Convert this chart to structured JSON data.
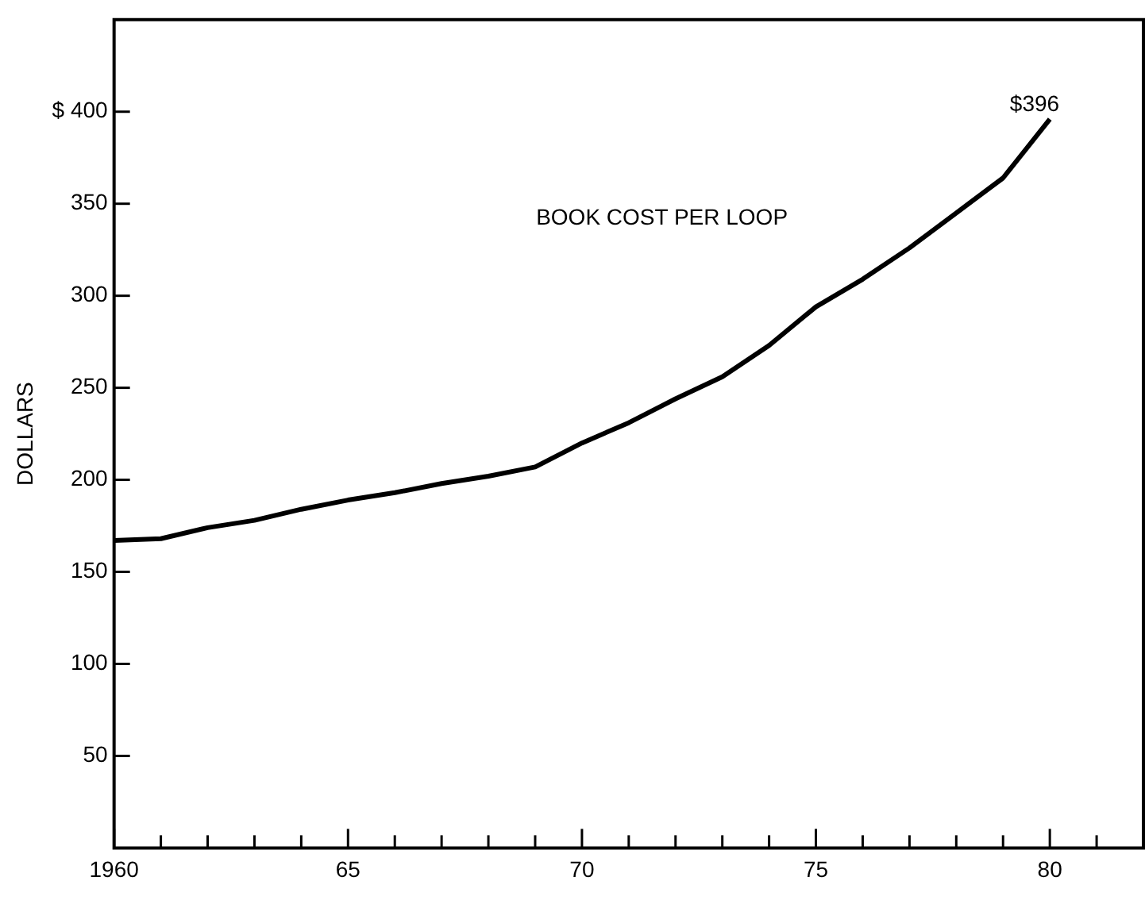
{
  "chart_data": {
    "type": "line",
    "ylabel": "DOLLARS",
    "x": [
      1960,
      1961,
      1962,
      1963,
      1964,
      1965,
      1966,
      1967,
      1968,
      1969,
      1970,
      1971,
      1972,
      1973,
      1974,
      1975,
      1976,
      1977,
      1978,
      1979,
      1980
    ],
    "series": [
      {
        "color": "#000000",
        "values": [
          167,
          168,
          174,
          178,
          184,
          189,
          193,
          198,
          202,
          207,
          220,
          231,
          244,
          256,
          273,
          294,
          309,
          326,
          345,
          364,
          396
        ]
      }
    ],
    "xlim": [
      1960,
      1982
    ],
    "xticks": [
      1960,
      {
        "value": 1961,
        "label": null
      },
      {
        "value": 1962,
        "label": null
      },
      {
        "value": 1963,
        "label": null
      },
      {
        "value": 1964,
        "label": null
      },
      {
        "value": 1965,
        "label": "65"
      },
      {
        "value": 1966,
        "label": null
      },
      {
        "value": 1967,
        "label": null
      },
      {
        "value": 1968,
        "label": null
      },
      {
        "value": 1969,
        "label": null
      },
      {
        "value": 1970,
        "label": "70"
      },
      {
        "value": 1971,
        "label": null
      },
      {
        "value": 1972,
        "label": null
      },
      {
        "value": 1973,
        "label": null
      },
      {
        "value": 1974,
        "label": null
      },
      {
        "value": 1975,
        "label": "75"
      },
      {
        "value": 1976,
        "label": null
      },
      {
        "value": 1977,
        "label": null
      },
      {
        "value": 1978,
        "label": null
      },
      {
        "value": 1979,
        "label": null
      },
      {
        "value": 1980,
        "label": "80"
      },
      {
        "value": 1981,
        "label": null
      }
    ],
    "ylim": [
      0,
      450
    ],
    "yticks": [
      50,
      100,
      150,
      200,
      250,
      300,
      350,
      {
        "value": 400,
        "label": "$ 400"
      }
    ],
    "annotations": [
      "BOOK COST PER LOOP",
      {
        "text": "$396",
        "x": 1980,
        "y": 396
      }
    ]
  }
}
